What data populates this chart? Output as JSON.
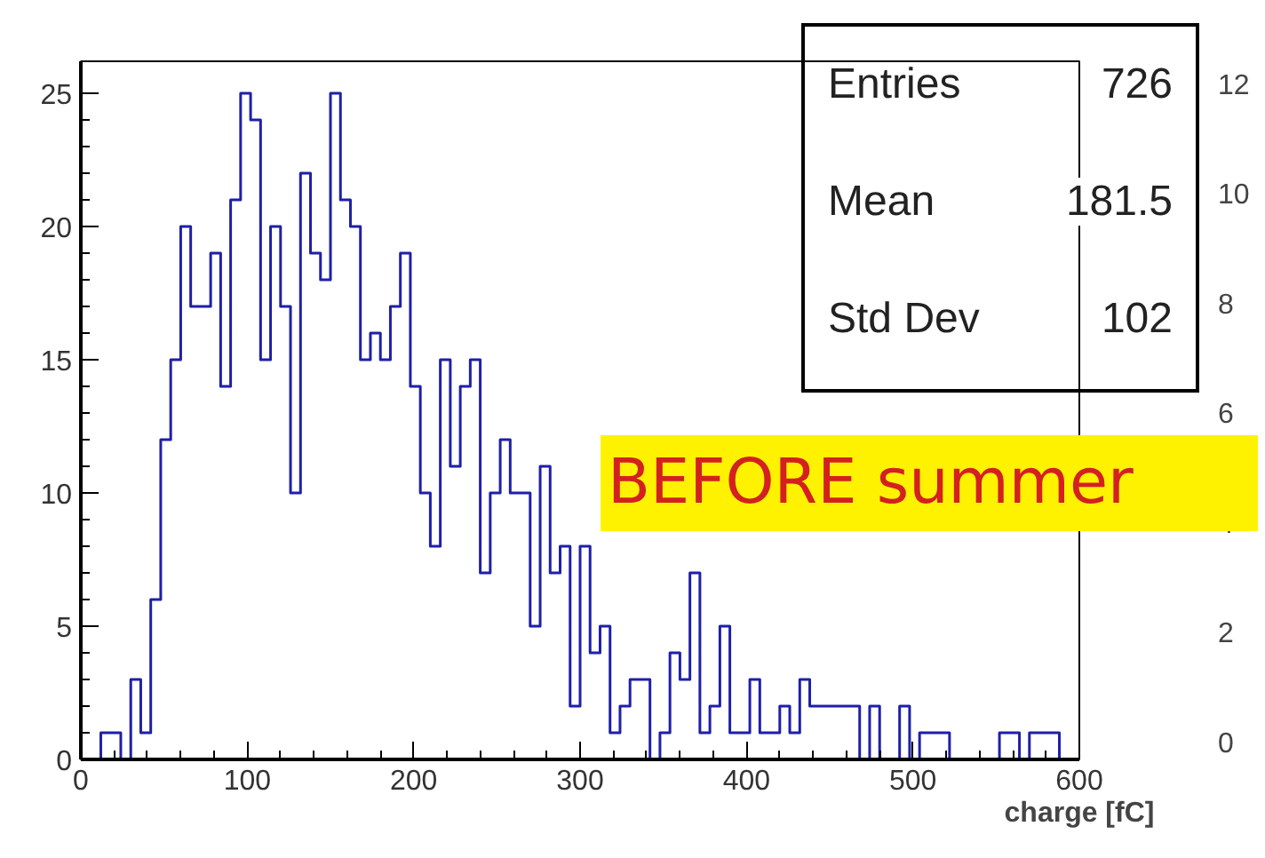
{
  "chart_data": {
    "type": "histogram",
    "bins": [
      0,
      6,
      12,
      18,
      24,
      30,
      36,
      42,
      48,
      54,
      60,
      66,
      72,
      78,
      84,
      90,
      96,
      102,
      108,
      114,
      120,
      126,
      132,
      138,
      144,
      150,
      156,
      162,
      168,
      174,
      180,
      186,
      192,
      198,
      204,
      210,
      216,
      222,
      228,
      234,
      240,
      246,
      252,
      258,
      264,
      270,
      276,
      282,
      288,
      294,
      300,
      306,
      312,
      318,
      324,
      330,
      336,
      342,
      348,
      354,
      360,
      366,
      372,
      378,
      384,
      390,
      396,
      402,
      408,
      414,
      420,
      426,
      432,
      438,
      444,
      450,
      456,
      462,
      468,
      474,
      480,
      486,
      492,
      498,
      504,
      510,
      516,
      522,
      528,
      534,
      540,
      546,
      552,
      558,
      564,
      570,
      576,
      582,
      588,
      594,
      600
    ],
    "values": [
      0,
      0,
      1,
      1,
      0,
      3,
      1,
      6,
      12,
      15,
      20,
      17,
      17,
      19,
      14,
      21,
      25,
      24,
      15,
      20,
      17,
      10,
      22,
      19,
      18,
      25,
      21,
      20,
      15,
      16,
      15,
      17,
      19,
      14,
      10,
      8,
      15,
      11,
      14,
      15,
      7,
      10,
      12,
      10,
      10,
      5,
      11,
      7,
      8,
      2,
      8,
      4,
      5,
      1,
      2,
      3,
      3,
      0,
      1,
      4,
      3,
      7,
      1,
      2,
      5,
      1,
      1,
      3,
      1,
      1,
      2,
      1,
      3,
      2,
      2,
      2,
      2,
      2,
      0,
      2,
      0,
      0,
      2,
      0,
      1,
      1,
      1,
      0,
      0,
      0,
      0,
      0,
      1,
      1,
      0,
      1,
      1,
      1,
      0,
      0
    ],
    "color": "#1f1fa8",
    "xlabel": "charge [fC]",
    "xlim": [
      0,
      600
    ],
    "xticks": [
      0,
      100,
      200,
      300,
      400,
      500,
      600
    ],
    "ylim": [
      0,
      26.2
    ],
    "yticks": [
      0,
      5,
      10,
      15,
      20,
      25
    ],
    "y2lim": [
      -0.33,
      12.4
    ],
    "y2ticks": [
      0,
      2,
      4,
      6,
      8,
      10,
      12
    ],
    "annotations": [
      "Entries",
      "726",
      "Mean",
      "181.5",
      "Std Dev",
      "102",
      "BEFORE summer"
    ],
    "grid": false
  }
}
